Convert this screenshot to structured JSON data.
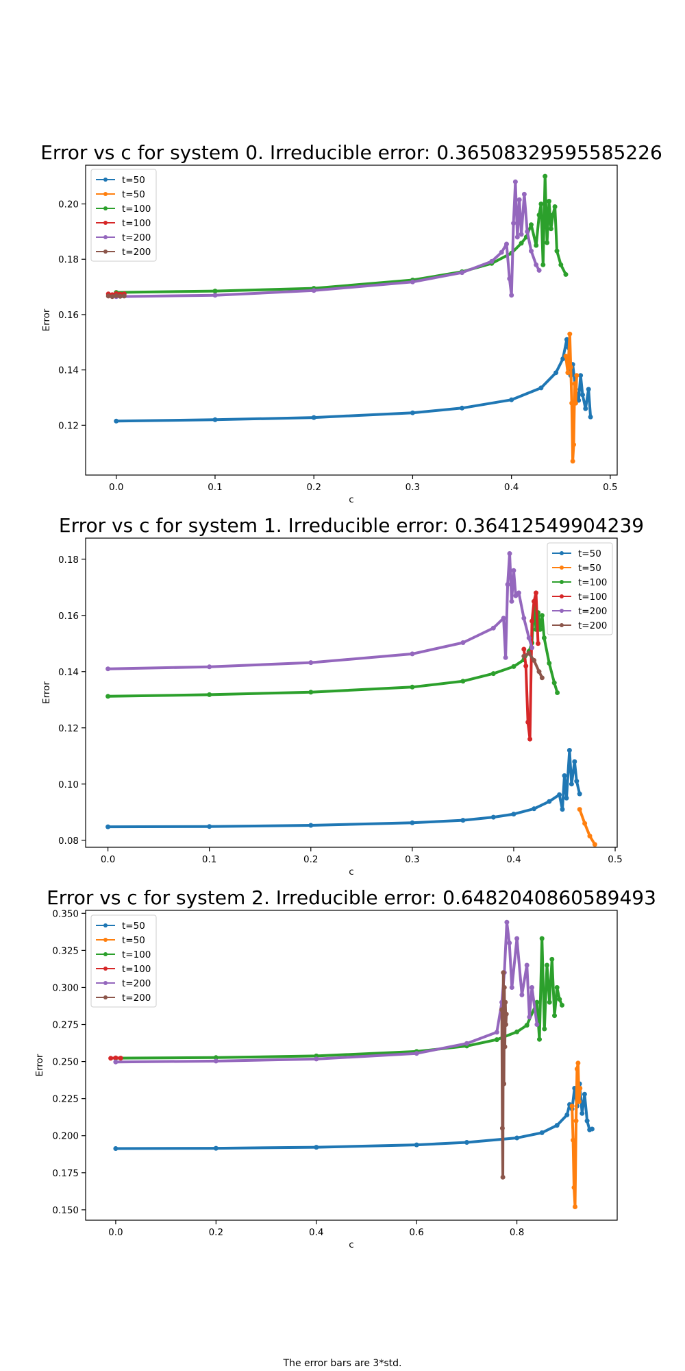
{
  "caption": "The error bars are 3*std.",
  "colors": {
    "t=50 (1)": "#1f77b4",
    "t=50 (2)": "#ff7f0e",
    "t=100 (1)": "#2ca02c",
    "t=100 (2)": "#d62728",
    "t=200 (1)": "#9467bd",
    "t=200 (2)": "#8c564b"
  },
  "chart_data": [
    {
      "type": "line",
      "title": "Error vs c for system 0. Irreducible error: 0.36508329595585226",
      "xlabel": "c",
      "ylabel": "Error",
      "xlim": [
        -0.031,
        0.507
      ],
      "ylim": [
        0.102,
        0.214
      ],
      "xticks": [
        0.0,
        0.1,
        0.2,
        0.3,
        0.4,
        0.5
      ],
      "xtick_labels": [
        "0.0",
        "0.1",
        "0.2",
        "0.3",
        "0.4",
        "0.5"
      ],
      "yticks": [
        0.12,
        0.14,
        0.16,
        0.18,
        0.2
      ],
      "ytick_labels": [
        "0.12",
        "0.14",
        "0.16",
        "0.18",
        "0.20"
      ],
      "grid": false,
      "legend": "top-left",
      "series": [
        {
          "name": "t=50",
          "color": "#1f77b4",
          "x": [
            0.0,
            0.1,
            0.2,
            0.3,
            0.35,
            0.4,
            0.43,
            0.445,
            0.452,
            0.456,
            0.458,
            0.46,
            0.462,
            0.465,
            0.468,
            0.47,
            0.472,
            0.475,
            0.478,
            0.48
          ],
          "y": [
            0.1215,
            0.122,
            0.1228,
            0.1245,
            0.1262,
            0.1292,
            0.1335,
            0.139,
            0.144,
            0.151,
            0.148,
            0.138,
            0.142,
            0.133,
            0.129,
            0.138,
            0.131,
            0.126,
            0.133,
            0.123
          ]
        },
        {
          "name": "t=50",
          "color": "#ff7f0e",
          "x": [
            0.455,
            0.457,
            0.459,
            0.46,
            0.461,
            0.462,
            0.463,
            0.464,
            0.465,
            0.466
          ],
          "y": [
            0.145,
            0.139,
            0.153,
            0.141,
            0.128,
            0.107,
            0.113,
            0.135,
            0.128,
            0.138
          ]
        },
        {
          "name": "t=100",
          "color": "#2ca02c",
          "x": [
            0.0,
            0.1,
            0.2,
            0.3,
            0.35,
            0.38,
            0.4,
            0.41,
            0.415,
            0.42,
            0.425,
            0.428,
            0.43,
            0.432,
            0.434,
            0.436,
            0.438,
            0.44,
            0.442,
            0.444,
            0.446,
            0.45,
            0.455
          ],
          "y": [
            0.168,
            0.1685,
            0.1695,
            0.1725,
            0.1755,
            0.1785,
            0.1822,
            0.1858,
            0.188,
            0.1925,
            0.185,
            0.196,
            0.2,
            0.178,
            0.21,
            0.186,
            0.201,
            0.191,
            0.196,
            0.199,
            0.183,
            0.178,
            0.1745
          ]
        },
        {
          "name": "t=100",
          "color": "#d62728",
          "x": [
            -0.008,
            -0.004,
            0.0,
            0.004,
            0.008
          ],
          "y": [
            0.1675,
            0.1672,
            0.1676,
            0.1674,
            0.1675
          ]
        },
        {
          "name": "t=200",
          "color": "#9467bd",
          "x": [
            0.0,
            0.1,
            0.2,
            0.3,
            0.35,
            0.38,
            0.39,
            0.395,
            0.398,
            0.4,
            0.402,
            0.404,
            0.406,
            0.408,
            0.41,
            0.413,
            0.416,
            0.42,
            0.425,
            0.428
          ],
          "y": [
            0.1665,
            0.167,
            0.1687,
            0.1718,
            0.1752,
            0.1792,
            0.1825,
            0.1855,
            0.173,
            0.167,
            0.193,
            0.208,
            0.188,
            0.2015,
            0.189,
            0.2035,
            0.19,
            0.183,
            0.178,
            0.176
          ]
        },
        {
          "name": "t=200",
          "color": "#8c564b",
          "x": [
            -0.008,
            -0.004,
            0.0,
            0.004,
            0.008
          ],
          "y": [
            0.1667,
            0.1665,
            0.1668,
            0.1666,
            0.1667
          ]
        }
      ]
    },
    {
      "type": "line",
      "title": "Error vs c for system 1. Irreducible error: 0.36412549904239",
      "xlabel": "c",
      "ylabel": "Error",
      "xlim": [
        -0.022,
        0.502
      ],
      "ylim": [
        0.0775,
        0.1875
      ],
      "xticks": [
        0.0,
        0.1,
        0.2,
        0.3,
        0.4,
        0.5
      ],
      "xtick_labels": [
        "0.0",
        "0.1",
        "0.2",
        "0.3",
        "0.4",
        "0.5"
      ],
      "yticks": [
        0.08,
        0.1,
        0.12,
        0.14,
        0.16,
        0.18
      ],
      "ytick_labels": [
        "0.08",
        "0.10",
        "0.12",
        "0.14",
        "0.16",
        "0.18"
      ],
      "grid": false,
      "legend": "top-right",
      "series": [
        {
          "name": "t=50",
          "color": "#1f77b4",
          "x": [
            0.0,
            0.1,
            0.2,
            0.3,
            0.35,
            0.38,
            0.4,
            0.42,
            0.435,
            0.445,
            0.448,
            0.45,
            0.452,
            0.455,
            0.457,
            0.46,
            0.462,
            0.465
          ],
          "y": [
            0.0848,
            0.0849,
            0.0853,
            0.0862,
            0.0871,
            0.0882,
            0.0893,
            0.0912,
            0.0938,
            0.0962,
            0.091,
            0.103,
            0.095,
            0.112,
            0.1,
            0.108,
            0.101,
            0.0965
          ]
        },
        {
          "name": "t=50",
          "color": "#ff7f0e",
          "x": [
            0.465,
            0.47,
            0.475,
            0.48
          ],
          "y": [
            0.091,
            0.086,
            0.0815,
            0.0785
          ]
        },
        {
          "name": "t=100",
          "color": "#2ca02c",
          "x": [
            0.0,
            0.1,
            0.2,
            0.3,
            0.35,
            0.38,
            0.4,
            0.41,
            0.415,
            0.418,
            0.42,
            0.422,
            0.424,
            0.426,
            0.428,
            0.43,
            0.435,
            0.44,
            0.443
          ],
          "y": [
            0.1312,
            0.1318,
            0.1327,
            0.1345,
            0.1366,
            0.1393,
            0.1418,
            0.1442,
            0.1472,
            0.1502,
            0.165,
            0.155,
            0.161,
            0.155,
            0.16,
            0.152,
            0.143,
            0.136,
            0.1325
          ]
        },
        {
          "name": "t=100",
          "color": "#d62728",
          "x": [
            0.41,
            0.412,
            0.414,
            0.416,
            0.418,
            0.42,
            0.422,
            0.424
          ],
          "y": [
            0.148,
            0.142,
            0.122,
            0.116,
            0.158,
            0.165,
            0.168,
            0.15
          ]
        },
        {
          "name": "t=200",
          "color": "#9467bd",
          "x": [
            0.0,
            0.1,
            0.2,
            0.3,
            0.35,
            0.38,
            0.39,
            0.392,
            0.394,
            0.396,
            0.398,
            0.4,
            0.402,
            0.405,
            0.41,
            0.415,
            0.418
          ],
          "y": [
            0.141,
            0.1417,
            0.1432,
            0.1463,
            0.1503,
            0.1555,
            0.159,
            0.145,
            0.171,
            0.182,
            0.165,
            0.176,
            0.167,
            0.168,
            0.159,
            0.152,
            0.1485
          ]
        },
        {
          "name": "t=200",
          "color": "#8c564b",
          "x": [
            0.41,
            0.415,
            0.42,
            0.425,
            0.428
          ],
          "y": [
            0.1455,
            0.1465,
            0.144,
            0.14,
            0.1378
          ]
        }
      ]
    },
    {
      "type": "line",
      "title": "Error vs c for system 2. Irreducible error: 0.6482040860589493",
      "xlabel": "c",
      "ylabel": "Error",
      "xlim": [
        -0.06,
        1.0
      ],
      "ylim": [
        0.143,
        0.352
      ],
      "xticks": [
        0.0,
        0.2,
        0.4,
        0.6,
        0.8
      ],
      "xtick_labels": [
        "0.0",
        "0.2",
        "0.4",
        "0.6",
        "0.8"
      ],
      "yticks": [
        0.15,
        0.175,
        0.2,
        0.225,
        0.25,
        0.275,
        0.3,
        0.325,
        0.35
      ],
      "ytick_labels": [
        "0.150",
        "0.175",
        "0.200",
        "0.225",
        "0.250",
        "0.275",
        "0.300",
        "0.325",
        "0.350"
      ],
      "grid": false,
      "legend": "top-left",
      "series": [
        {
          "name": "t=50",
          "color": "#1f77b4",
          "x": [
            0.0,
            0.2,
            0.4,
            0.6,
            0.7,
            0.8,
            0.85,
            0.88,
            0.9,
            0.905,
            0.91,
            0.915,
            0.92,
            0.925,
            0.93,
            0.935,
            0.94,
            0.945,
            0.95
          ],
          "y": [
            0.1913,
            0.1915,
            0.1922,
            0.1938,
            0.1955,
            0.1985,
            0.202,
            0.207,
            0.214,
            0.221,
            0.218,
            0.232,
            0.22,
            0.235,
            0.215,
            0.228,
            0.21,
            0.204,
            0.2045
          ]
        },
        {
          "name": "t=50",
          "color": "#ff7f0e",
          "x": [
            0.91,
            0.912,
            0.914,
            0.916,
            0.918,
            0.92,
            0.922,
            0.924,
            0.926
          ],
          "y": [
            0.22,
            0.197,
            0.165,
            0.152,
            0.21,
            0.245,
            0.249,
            0.223,
            0.232
          ]
        },
        {
          "name": "t=100",
          "color": "#2ca02c",
          "x": [
            0.0,
            0.2,
            0.4,
            0.6,
            0.7,
            0.76,
            0.8,
            0.82,
            0.84,
            0.845,
            0.85,
            0.855,
            0.86,
            0.865,
            0.87,
            0.875,
            0.88,
            0.885,
            0.89
          ],
          "y": [
            0.2523,
            0.2527,
            0.2538,
            0.2568,
            0.2605,
            0.2648,
            0.27,
            0.2745,
            0.29,
            0.265,
            0.333,
            0.272,
            0.315,
            0.29,
            0.319,
            0.281,
            0.3,
            0.292,
            0.288
          ]
        },
        {
          "name": "t=100",
          "color": "#d62728",
          "x": [
            -0.01,
            0.0,
            0.01
          ],
          "y": [
            0.2522,
            0.2525,
            0.2523
          ]
        },
        {
          "name": "t=200",
          "color": "#9467bd",
          "x": [
            0.0,
            0.2,
            0.4,
            0.6,
            0.7,
            0.76,
            0.77,
            0.775,
            0.78,
            0.785,
            0.79,
            0.8,
            0.81,
            0.82,
            0.825,
            0.83,
            0.84
          ],
          "y": [
            0.2497,
            0.2503,
            0.2517,
            0.2555,
            0.2622,
            0.2698,
            0.29,
            0.31,
            0.344,
            0.33,
            0.3,
            0.333,
            0.295,
            0.315,
            0.28,
            0.3,
            0.275
          ]
        },
        {
          "name": "t=200",
          "color": "#8c564b",
          "x": [
            0.77,
            0.771,
            0.772,
            0.773,
            0.774,
            0.775,
            0.776,
            0.777,
            0.778,
            0.779
          ],
          "y": [
            0.285,
            0.205,
            0.172,
            0.31,
            0.235,
            0.3,
            0.26,
            0.29,
            0.275,
            0.282
          ]
        }
      ]
    }
  ]
}
